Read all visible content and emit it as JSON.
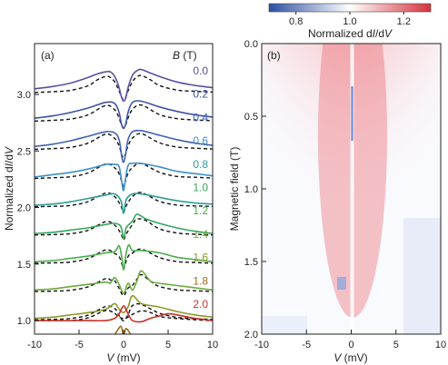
{
  "chart_data": [
    {
      "panel": "(a)",
      "type": "line",
      "xlabel": "V (mV)",
      "ylabel": "Normalized dI/dV",
      "xlim": [
        -10,
        10
      ],
      "ylim": [
        0.88,
        3.45
      ],
      "xticks": [
        -10,
        -5,
        0,
        5,
        10
      ],
      "yticks": [
        1.0,
        1.5,
        2.0,
        2.5,
        3.0
      ],
      "legend_title": "B (T)",
      "offset_per_trace": 0.25,
      "series": [
        {
          "name": "0.0",
          "color": "#5b4f9e",
          "base": 3.0,
          "x": [
            -10,
            -8,
            -6,
            -4,
            -3,
            -2,
            -1.5,
            -1,
            -0.5,
            -0.25,
            0,
            0.25,
            0.5,
            1,
            1.5,
            2,
            3,
            4,
            6,
            8,
            10
          ],
          "y": [
            3.05,
            3.07,
            3.1,
            3.15,
            3.18,
            3.2,
            3.2,
            3.16,
            3.06,
            2.98,
            2.94,
            2.97,
            3.06,
            3.17,
            3.21,
            3.22,
            3.19,
            3.16,
            3.11,
            3.08,
            3.06
          ]
        },
        {
          "name": "0.2",
          "color": "#3b52a6",
          "base": 2.75,
          "x": [
            -10,
            -8,
            -6,
            -4,
            -2,
            -1,
            -0.5,
            -0.25,
            0,
            0.25,
            0.5,
            1,
            2,
            4,
            6,
            8,
            10
          ],
          "y": [
            2.79,
            2.81,
            2.84,
            2.88,
            2.93,
            2.92,
            2.84,
            2.74,
            2.7,
            2.74,
            2.84,
            2.93,
            2.94,
            2.89,
            2.85,
            2.82,
            2.8
          ]
        },
        {
          "name": "0.4",
          "color": "#3e63b2",
          "base": 2.5,
          "x": [
            -10,
            -8,
            -6,
            -4,
            -2,
            -1,
            -0.5,
            -0.2,
            0,
            0.2,
            0.5,
            1,
            2,
            4,
            6,
            8,
            10
          ],
          "y": [
            2.54,
            2.56,
            2.59,
            2.63,
            2.67,
            2.66,
            2.6,
            2.45,
            2.4,
            2.46,
            2.6,
            2.67,
            2.68,
            2.64,
            2.6,
            2.57,
            2.55
          ]
        },
        {
          "name": "0.6",
          "color": "#3a8fc8",
          "base": 2.25,
          "x": [
            -10,
            -8,
            -6,
            -4,
            -2,
            -1,
            -0.5,
            -0.15,
            0,
            0.15,
            0.5,
            1,
            2,
            4,
            6,
            8,
            10
          ],
          "y": [
            2.27,
            2.29,
            2.31,
            2.34,
            2.38,
            2.38,
            2.36,
            2.2,
            2.15,
            2.22,
            2.37,
            2.39,
            2.39,
            2.36,
            2.32,
            2.3,
            2.28
          ]
        },
        {
          "name": "0.8",
          "color": "#2a9d9b",
          "base": 2.0,
          "x": [
            -10,
            -8,
            -6,
            -4,
            -2,
            -1,
            -0.3,
            0,
            0.3,
            1,
            2,
            4,
            6,
            8,
            10
          ],
          "y": [
            2.02,
            2.03,
            2.05,
            2.08,
            2.11,
            2.12,
            2.06,
            1.95,
            2.07,
            2.12,
            2.12,
            2.09,
            2.06,
            2.04,
            2.03
          ]
        },
        {
          "name": "1.0",
          "color": "#36a65a",
          "base": 1.75,
          "x": [
            -10,
            -8,
            -6,
            -4,
            -2,
            -1,
            -0.3,
            0,
            0.3,
            1,
            1.5,
            2.5,
            4,
            6,
            8,
            10
          ],
          "y": [
            1.77,
            1.78,
            1.8,
            1.82,
            1.85,
            1.86,
            1.83,
            1.72,
            1.82,
            1.88,
            1.94,
            1.9,
            1.86,
            1.82,
            1.79,
            1.77
          ]
        },
        {
          "name": "1.2",
          "color": "#4aad48",
          "base": 1.5,
          "x": [
            -10,
            -8,
            -6,
            -4,
            -2,
            -1,
            -0.5,
            -0.2,
            0,
            0.3,
            0.6,
            1,
            2,
            4,
            6,
            8,
            10
          ],
          "y": [
            1.52,
            1.53,
            1.55,
            1.57,
            1.6,
            1.61,
            1.66,
            1.56,
            1.45,
            1.6,
            1.67,
            1.62,
            1.62,
            1.6,
            1.56,
            1.54,
            1.52
          ]
        },
        {
          "name": "1.4",
          "color": "#6aaa3a",
          "base": 1.25,
          "x": [
            -10,
            -8,
            -6,
            -4,
            -2,
            -1.5,
            -1,
            -0.5,
            0,
            0.5,
            1,
            1.5,
            2,
            3,
            4,
            6,
            8,
            10
          ],
          "y": [
            1.27,
            1.28,
            1.3,
            1.32,
            1.34,
            1.33,
            1.38,
            1.32,
            1.24,
            1.33,
            1.27,
            1.35,
            1.44,
            1.35,
            1.33,
            1.31,
            1.29,
            1.27
          ]
        },
        {
          "name": "1.6",
          "color": "#8a9a26",
          "base": 1.0,
          "x": [
            -10,
            -8,
            -6,
            -4,
            -2,
            -1,
            -0.5,
            0,
            0.5,
            1,
            2,
            4,
            6,
            8,
            10
          ],
          "y": [
            1.02,
            1.03,
            1.05,
            1.07,
            1.1,
            1.15,
            1.1,
            1.07,
            1.12,
            1.22,
            1.15,
            1.12,
            1.08,
            1.05,
            1.03
          ]
        },
        {
          "name": "1.8",
          "color": "#9a6d1e",
          "base": 0.75,
          "x": [
            -10,
            -8,
            -6,
            -4,
            -2,
            -1,
            -0.3,
            0,
            0.3,
            1,
            2,
            4,
            6,
            8,
            10
          ],
          "y": [
            0.77,
            0.78,
            0.79,
            0.81,
            0.84,
            0.88,
            0.95,
            0.86,
            0.93,
            0.86,
            0.83,
            0.81,
            0.79,
            0.78,
            0.77
          ]
        },
        {
          "name": "2.0",
          "color": "#c8302c",
          "base": 1.0,
          "x": [
            -10,
            -8,
            -6,
            -4,
            -2,
            -1,
            -0.5,
            0,
            0.5,
            1,
            2,
            3,
            4,
            5,
            6,
            8,
            10
          ],
          "y": [
            1.0,
            1.0,
            1.0,
            1.0,
            1.0,
            1.02,
            1.06,
            1.13,
            1.06,
            1.0,
            0.99,
            1.02,
            1.04,
            1.06,
            1.05,
            1.02,
            1.0
          ]
        }
      ],
      "fit_style": "black dashed"
    },
    {
      "panel": "(b)",
      "type": "heatmap",
      "xlabel": "V (mV)",
      "ylabel": "Magnetic field (T)",
      "xlim": [
        -10,
        10
      ],
      "ylim": [
        2.0,
        0.0
      ],
      "xticks": [
        -10,
        -5,
        0,
        5,
        10
      ],
      "yticks": [
        0.0,
        0.5,
        1.0,
        1.5,
        2.0
      ],
      "colorbar": {
        "label": "Normalized dI/dV",
        "range": [
          0.7,
          1.3
        ],
        "ticks": [
          0.8,
          1.0,
          1.2
        ],
        "low_color": "#2c4fa3",
        "mid_color": "#ffffff",
        "high_color": "#d6313d"
      }
    }
  ],
  "labels": {
    "panel_a": "(a)",
    "panel_b": "(b)",
    "legend_title_b": "B",
    "legend_title_unit": " (T)",
    "ylabel_a_pre": "Normalized d",
    "ylabel_a_mid": "I",
    "ylabel_a_slash": "/d",
    "ylabel_a_end": "V",
    "ylabel_b": "Magnetic field (T)",
    "xlabel_v": "V",
    "xlabel_unit": " (mV)",
    "cbar_label_pre": "Normalized d",
    "cbar_label_i": "I",
    "cbar_label_slash": "/d",
    "cbar_label_v": "V",
    "a_ytick_labels": [
      "1.0",
      "1.5",
      "2.0",
      "2.5",
      "3.0"
    ],
    "a_xtick_labels": [
      "-10",
      "-5",
      "0",
      "5",
      "10"
    ],
    "b_ytick_labels": [
      "0.0",
      "0.5",
      "1.0",
      "1.5",
      "2.0"
    ],
    "b_xtick_labels": [
      "-10",
      "-5",
      "0",
      "5",
      "10"
    ],
    "cbar_tick_labels": [
      "0.8",
      "1.0",
      "1.2"
    ]
  }
}
